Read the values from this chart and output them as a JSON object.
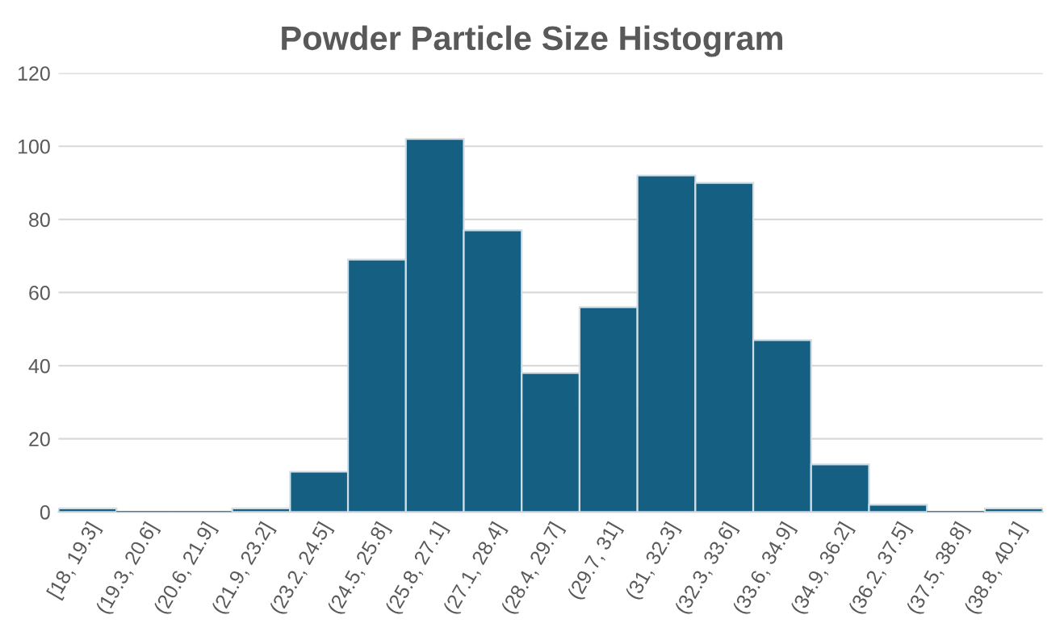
{
  "chart_data": {
    "type": "bar",
    "title": "Powder Particle Size Histogram",
    "categories": [
      "[18, 19.3]",
      "(19.3, 20.6]",
      "(20.6, 21.9]",
      "(21.9, 23.2]",
      "(23.2, 24.5]",
      "(24.5, 25.8]",
      "(25.8, 27.1]",
      "(27.1, 28.4]",
      "(28.4, 29.7]",
      "(29.7, 31]",
      "(31, 32.3]",
      "(32.3, 33.6]",
      "(33.6, 34.9]",
      "(34.9, 36.2]",
      "(36.2, 37.5]",
      "(37.5, 38.8]",
      "(38.8, 40.1]"
    ],
    "values": [
      1,
      0,
      0,
      1,
      11,
      69,
      102,
      77,
      38,
      56,
      92,
      90,
      47,
      13,
      2,
      0,
      1
    ],
    "color": "#156082",
    "ylim": [
      0,
      120
    ],
    "yticks": [
      0,
      20,
      40,
      60,
      80,
      100,
      120
    ],
    "grid": "y"
  }
}
